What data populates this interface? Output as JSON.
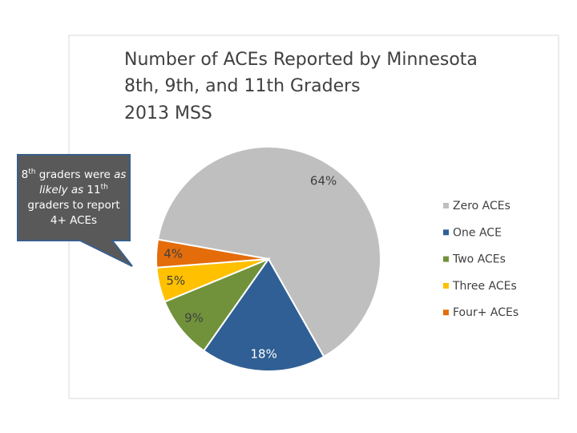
{
  "chart_data": {
    "type": "pie",
    "title": [
      "Number of ACEs Reported by Minnesota",
      "8th, 9th, and 11th Graders",
      "2013 MSS"
    ],
    "categories": [
      "Zero ACEs",
      "One ACE",
      "Two ACEs",
      "Three ACEs",
      "Four+ ACEs"
    ],
    "values": [
      64,
      18,
      9,
      5,
      4
    ],
    "value_labels": [
      "64%",
      "18%",
      "9%",
      "5%",
      "4%"
    ],
    "colors": [
      "#bfbfbf",
      "#2f5f94",
      "#71923b",
      "#ffc000",
      "#e46c0a"
    ],
    "legend": "right"
  },
  "callout": {
    "parts": [
      "8",
      "th",
      " graders were ",
      "as likely as",
      " 11",
      "th",
      " graders to report 4+ ACEs"
    ]
  }
}
